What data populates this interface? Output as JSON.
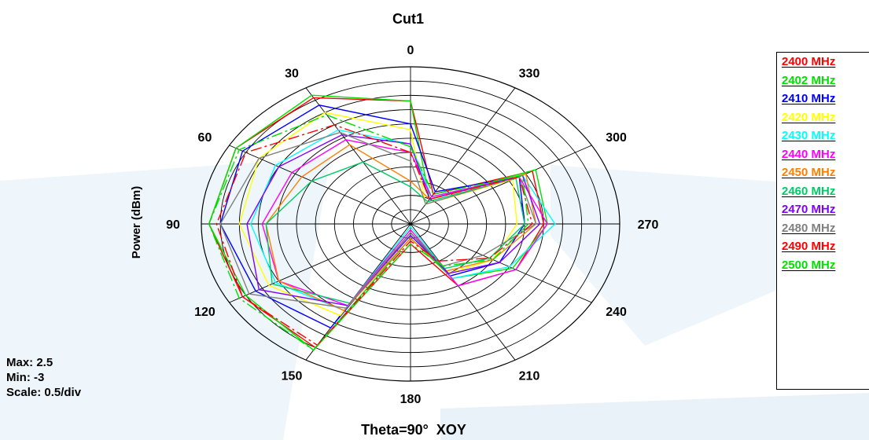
{
  "stats": {
    "max": "Max: 2.5",
    "min": "Min: -3",
    "scale": "Scale: 0.5/div"
  },
  "chart_data": {
    "type": "polar-line",
    "title": "Cut1",
    "xlabel": "Theta=90°  XOY",
    "ylabel": "Power   (dBm)",
    "angle_labels": [
      "0",
      "30",
      "60",
      "90",
      "120",
      "150",
      "180",
      "210",
      "240",
      "270",
      "300",
      "330"
    ],
    "angles_deg": [
      0,
      30,
      60,
      90,
      120,
      150,
      180,
      210,
      240,
      270,
      300,
      330
    ],
    "rlim": [
      -3,
      2.5
    ],
    "r_step": 0.5,
    "grid": true,
    "legend_position": "right",
    "series": [
      {
        "name": "2400 MHz",
        "color": "#ff0000",
        "dash": false,
        "values": [
          1.3,
          2.1,
          2.3,
          2.3,
          2.1,
          2.0,
          -2.3,
          -0.5,
          0.2,
          0.5,
          0.7,
          -1.8
        ]
      },
      {
        "name": "2402 MHz",
        "color": "#00e000",
        "dash": false,
        "values": [
          1.3,
          2.2,
          2.3,
          2.3,
          2.0,
          2.1,
          -2.5,
          -0.8,
          0.1,
          0.6,
          0.8,
          -2.0
        ]
      },
      {
        "name": "2410 MHz",
        "color": "#0000ff",
        "dash": false,
        "values": [
          0.5,
          1.8,
          2.1,
          2.0,
          1.7,
          1.2,
          -2.7,
          -0.9,
          -0.3,
          0.0,
          0.3,
          -1.7
        ]
      },
      {
        "name": "2420 MHz",
        "color": "#ffff00",
        "dash": false,
        "values": [
          0.3,
          1.5,
          1.6,
          1.5,
          1.3,
          0.7,
          -2.8,
          -1.0,
          -0.5,
          -0.2,
          0.1,
          -2.2
        ]
      },
      {
        "name": "2430 MHz",
        "color": "#00ffff",
        "dash": false,
        "values": [
          -0.2,
          0.8,
          1.1,
          1.2,
          1.1,
          0.5,
          -2.9,
          -0.8,
          0.0,
          0.8,
          0.4,
          -1.9
        ]
      },
      {
        "name": "2440 MHz",
        "color": "#ff00ff",
        "dash": false,
        "values": [
          -0.5,
          0.4,
          0.6,
          0.9,
          1.0,
          0.3,
          -2.8,
          -0.5,
          0.2,
          0.6,
          0.3,
          -1.9
        ]
      },
      {
        "name": "2450 MHz",
        "color": "#ff7f00",
        "dash": false,
        "values": [
          -1.5,
          0.2,
          0.3,
          0.8,
          1.0,
          0.5,
          -2.5,
          -1.1,
          -0.5,
          0.3,
          0.5,
          -2.0
        ]
      },
      {
        "name": "2460 MHz",
        "color": "#00cc66",
        "dash": false,
        "values": [
          -1.7,
          -0.5,
          0.0,
          0.8,
          1.2,
          0.2,
          -2.6,
          -1.2,
          -0.6,
          0.0,
          0.2,
          -2.1
        ]
      },
      {
        "name": "2470 MHz",
        "color": "#8000ff",
        "dash": false,
        "values": [
          -0.2,
          0.6,
          1.0,
          1.3,
          1.6,
          0.3,
          -2.6,
          -1.0,
          -0.3,
          0.4,
          0.4,
          -2.0
        ]
      },
      {
        "name": "2480 MHz",
        "color": "#808080",
        "dash": false,
        "values": [
          -0.8,
          0.7,
          1.6,
          2.0,
          1.9,
          0.4,
          -2.7,
          -1.3,
          -0.8,
          0.3,
          0.3,
          -2.2
        ]
      },
      {
        "name": "2490 MHz",
        "color": "#ff0000",
        "dash": true,
        "values": [
          -0.5,
          1.0,
          2.0,
          2.1,
          2.1,
          1.9,
          -2.4,
          -1.5,
          -0.6,
          0.2,
          0.3,
          -2.0
        ]
      },
      {
        "name": "2500 MHz",
        "color": "#00e000",
        "dash": true,
        "values": [
          -0.3,
          1.4,
          2.2,
          2.3,
          2.2,
          2.1,
          -2.3,
          -1.3,
          -0.5,
          0.1,
          0.4,
          -1.8
        ]
      }
    ]
  }
}
